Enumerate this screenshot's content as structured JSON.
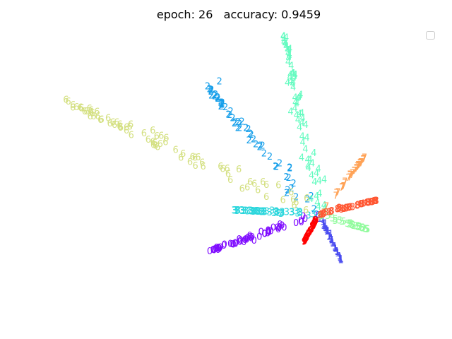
{
  "chart_data": {
    "type": "scatter",
    "title": "epoch: 26   accuracy: 0.9459",
    "xlabel": "",
    "ylabel": "",
    "axes_visible": false,
    "legend": "top-right (empty)",
    "xlim": [
      -3.0,
      1.0
    ],
    "ylim": [
      -1.0,
      2.0
    ],
    "center": [
      0.0,
      0.0
    ],
    "series": [
      {
        "label": "0",
        "color": "#7f0cff",
        "tip": [
          -1.25,
          -0.42
        ],
        "count": 60,
        "spread": 0.01
      },
      {
        "label": "1",
        "color": "#4a4cf0",
        "tip": [
          0.25,
          -0.52
        ],
        "count": 40,
        "spread": 0.008
      },
      {
        "label": "2",
        "color": "#169fea",
        "tip": [
          -1.28,
          1.47
        ],
        "count": 60,
        "spread": 0.012
      },
      {
        "label": "3",
        "color": "#2bd6dc",
        "tip": [
          -0.97,
          0.05
        ],
        "count": 50,
        "spread": 0.006
      },
      {
        "label": "4",
        "color": "#64fbc0",
        "tip": [
          -0.4,
          2.05
        ],
        "count": 70,
        "spread": 0.014
      },
      {
        "label": "5",
        "color": "#92fb9e",
        "tip": [
          0.55,
          -0.17
        ],
        "count": 30,
        "spread": 0.006
      },
      {
        "label": "6",
        "color": "#d4e082",
        "tip": [
          -2.9,
          1.3
        ],
        "count": 80,
        "spread": 0.01
      },
      {
        "label": "7",
        "color": "#ffa256",
        "tip": [
          0.52,
          0.65
        ],
        "count": 40,
        "spread": 0.008
      },
      {
        "label": "8",
        "color": "#ff5733",
        "tip": [
          0.65,
          0.16
        ],
        "count": 45,
        "spread": 0.006
      },
      {
        "label": "9",
        "color": "#ff0000",
        "tip": [
          -0.17,
          -0.31
        ],
        "count": 40,
        "spread": 0.008
      }
    ],
    "outliers": [
      {
        "label": "2",
        "color": "#169fea",
        "x": -0.37,
        "y": 0.25
      },
      {
        "label": "2",
        "color": "#169fea",
        "x": -1.14,
        "y": 1.53
      }
    ]
  }
}
